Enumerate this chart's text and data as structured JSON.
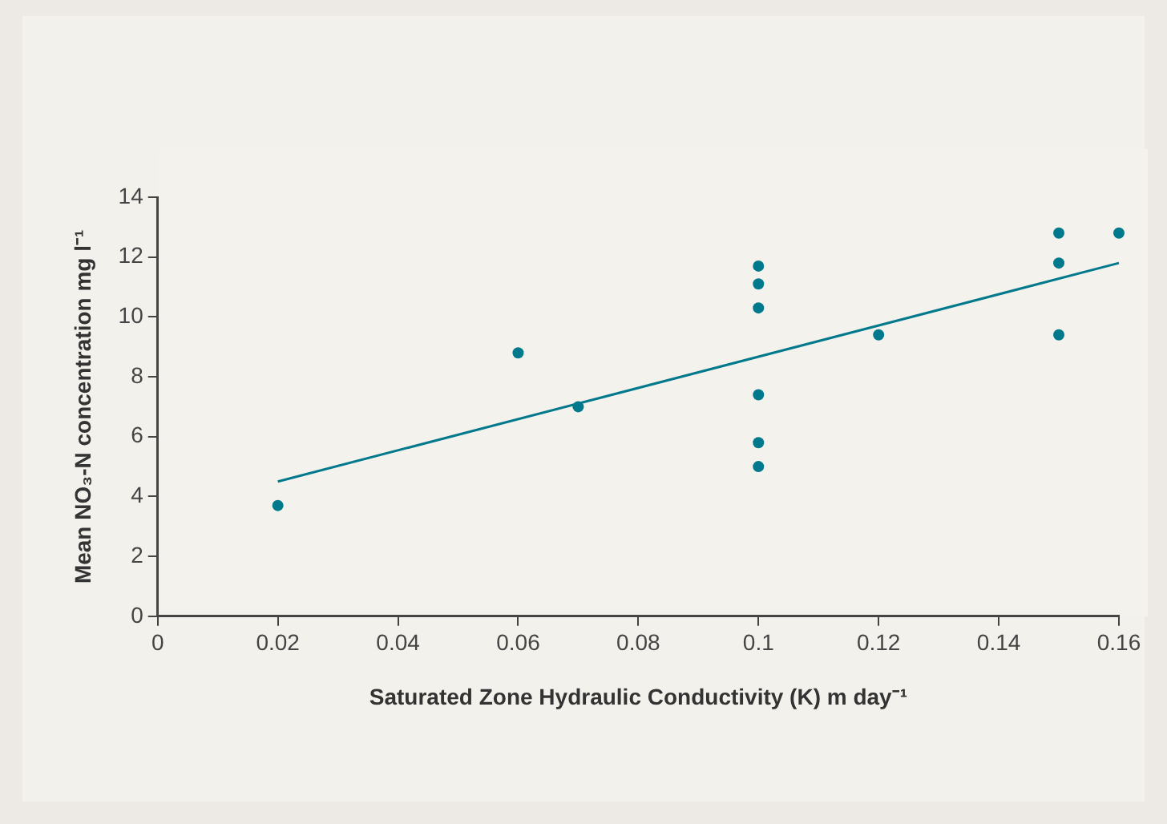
{
  "chart_data": {
    "type": "scatter",
    "xlabel": "Saturated Zone Hydraulic Conductivity (K) m day⁻¹",
    "ylabel": "Mean NO₃-N concentration mg l⁻¹",
    "xlim": [
      0,
      0.16
    ],
    "xticks": [
      0,
      0.02,
      0.04,
      0.06,
      0.08,
      0.1,
      0.12,
      0.14,
      0.16
    ],
    "ylim": [
      0,
      14
    ],
    "yticks": [
      0,
      2,
      4,
      6,
      8,
      10,
      12,
      14
    ],
    "grid": false,
    "legend": false,
    "marker": "circle",
    "series": [
      {
        "color": "#00798c",
        "x": [
          0.02,
          0.06,
          0.07,
          0.1,
          0.1,
          0.1,
          0.1,
          0.1,
          0.1,
          0.12,
          0.15,
          0.15,
          0.15,
          0.16
        ],
        "values": [
          3.7,
          8.8,
          7.0,
          11.7,
          11.1,
          10.3,
          7.4,
          5.8,
          5.0,
          9.4,
          12.8,
          11.8,
          9.4,
          12.8
        ]
      },
      {
        "type": "line",
        "color": "#00798c",
        "marker": "none",
        "x": [
          0.02,
          0.16
        ],
        "values": [
          4.5,
          11.8
        ]
      }
    ]
  }
}
